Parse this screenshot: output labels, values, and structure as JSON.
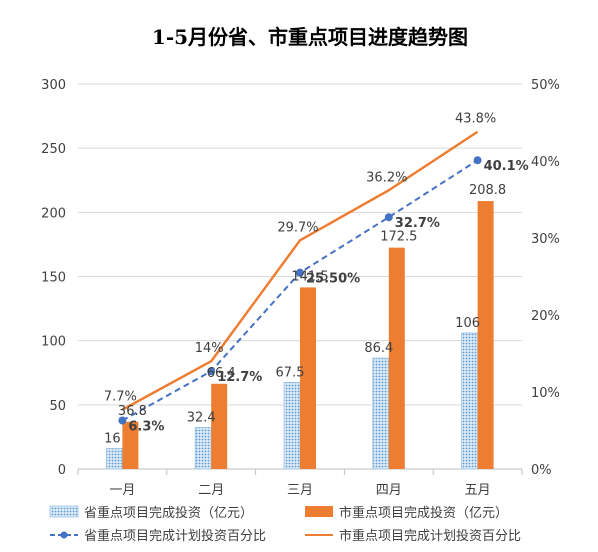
{
  "chart_data": {
    "type": "bar",
    "title": "1-5月份省、市重点项目进度趋势图",
    "categories": [
      "一月",
      "二月",
      "三月",
      "四月",
      "五月"
    ],
    "y_left": {
      "min": 0,
      "max": 300,
      "ticks": [
        "0",
        "50",
        "100",
        "150",
        "200",
        "250",
        "300"
      ]
    },
    "y_right": {
      "min": 0,
      "max": 0.5,
      "ticks": [
        "0%",
        "10%",
        "20%",
        "30%",
        "40%",
        "50%"
      ]
    },
    "grid": true,
    "legend_position": "bottom",
    "series": [
      {
        "name": "省重点项目完成投资（亿元）",
        "type": "bar",
        "axis": "left",
        "color": "#5b9bd5",
        "pattern": "dotted",
        "values": [
          16,
          32.4,
          67.5,
          86.4,
          106
        ],
        "labels": [
          "16",
          "32.4",
          "67.5",
          "86.4",
          "106"
        ]
      },
      {
        "name": "市重点项目完成投资（亿元）",
        "type": "bar",
        "axis": "left",
        "color": "#ed7d31",
        "values": [
          36.8,
          66.4,
          141.5,
          172.5,
          208.8
        ],
        "labels": [
          "36.8",
          "66.4",
          "141.5",
          "172.5",
          "208.8"
        ]
      },
      {
        "name": "省重点项目完成计划投资百分比",
        "type": "line",
        "axis": "right",
        "color": "#4472c4",
        "dashed": true,
        "markers": true,
        "values": [
          0.063,
          0.127,
          0.255,
          0.327,
          0.401
        ],
        "labels": [
          "6.3%",
          "12.7%",
          "25.50%",
          "32.7%",
          "40.1%"
        ]
      },
      {
        "name": "市重点项目完成计划投资百分比",
        "type": "line",
        "axis": "right",
        "color": "#ed7d31",
        "dashed": false,
        "markers": false,
        "values": [
          0.077,
          0.14,
          0.297,
          0.362,
          0.438
        ],
        "labels": [
          "7.7%",
          "14%",
          "29.7%",
          "36.2%",
          "43.8%"
        ]
      }
    ]
  }
}
